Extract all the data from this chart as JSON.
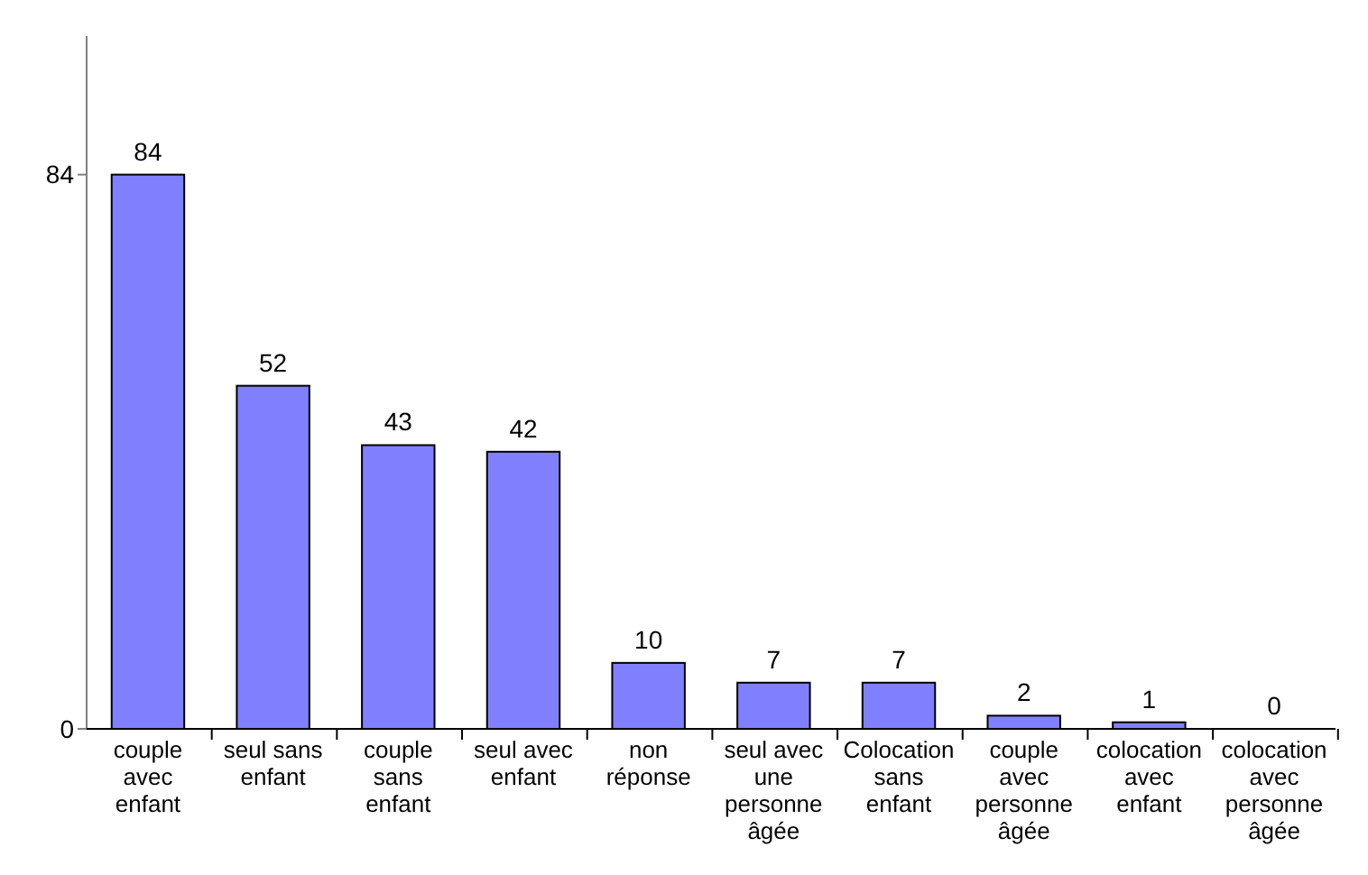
{
  "chart_data": {
    "type": "bar",
    "categories": [
      "couple avec enfant",
      "seul sans enfant",
      "couple sans enfant",
      "seul avec enfant",
      "non réponse",
      "seul avec une personne âgée",
      "Colocation sans enfant",
      "couple avec personne âgée",
      "colocation avec enfant",
      "colocation avec personne âgée"
    ],
    "values": [
      84,
      52,
      43,
      42,
      10,
      7,
      7,
      2,
      1,
      0
    ],
    "color": "#8080ff",
    "ylim": [
      0,
      105
    ],
    "yticks": [
      0,
      84
    ],
    "data_labels": true,
    "grid": false
  }
}
